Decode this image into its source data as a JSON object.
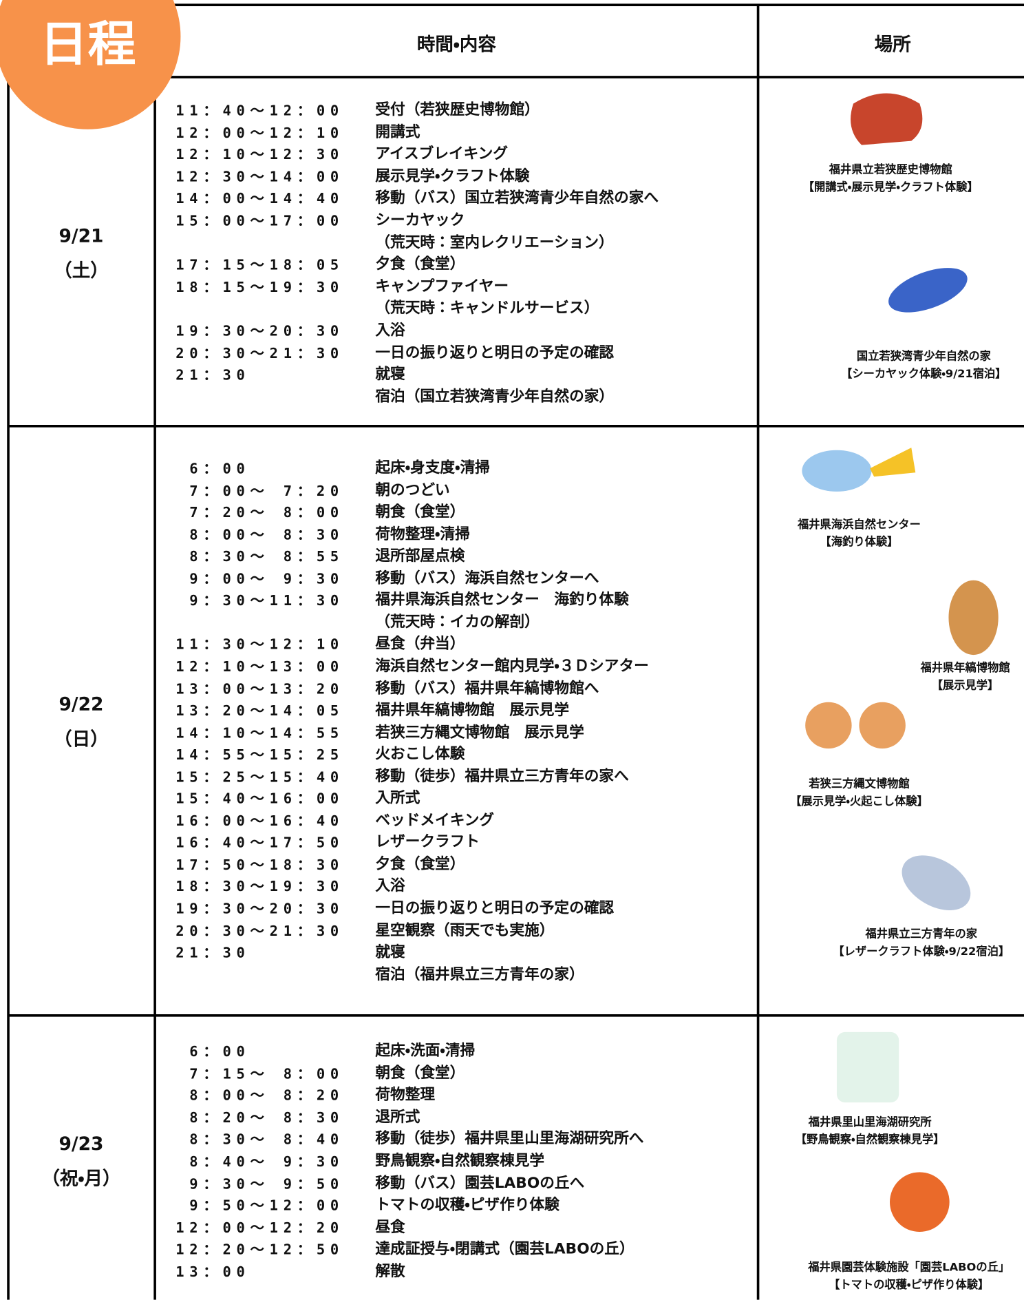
{
  "header": {
    "badge": "日程",
    "columns": [
      "時間・内容",
      "場所"
    ]
  },
  "days": [
    {
      "date": "9/21",
      "weekday": "（土）",
      "items": [
        {
          "time": "11：40〜12：00",
          "text": "受付（若狭歴史博物館）"
        },
        {
          "time": "12：00〜12：10",
          "text": "開講式"
        },
        {
          "time": "12：10〜12：30",
          "text": "アイスブレイキング"
        },
        {
          "time": "12：30〜14：00",
          "text": "展示見学・クラフト体験"
        },
        {
          "time": "14：00〜14：40",
          "text": "移動（バス）国立若狭湾青少年自然の家へ"
        },
        {
          "time": "15：00〜17：00",
          "text": "シーカヤック"
        },
        {
          "text": "（荒天時：室内レクリエーション）"
        },
        {
          "time": "17：15〜18：05",
          "text": "夕食（食堂）"
        },
        {
          "time": "18：15〜19：30",
          "text": "キャンプファイヤー"
        },
        {
          "text": "（荒天時：キャンドルサービス）"
        },
        {
          "time": "19：30〜20：30",
          "text": "入浴"
        },
        {
          "time": "20：30〜21：30",
          "text": "一日の振り返りと明日の予定の確認"
        },
        {
          "time": "21：30",
          "text": "就寝"
        },
        {
          "text": "宿泊（国立若狭湾青少年自然の家）"
        }
      ],
      "places": [
        {
          "name": "福井県立若狭歴史博物館",
          "detail": "【開講式・展示見学・クラフト体験】"
        },
        {
          "name": "国立若狭湾青少年自然の家",
          "detail": "【シーカヤック体験・9/21宿泊】"
        }
      ]
    },
    {
      "date": "9/22",
      "weekday": "（日）",
      "items": [
        {
          "time": " 6：00",
          "text": "起床・身支度・清掃"
        },
        {
          "time": " 7：00〜 7：20",
          "text": "朝のつどい"
        },
        {
          "time": " 7：20〜 8：00",
          "text": "朝食（食堂）"
        },
        {
          "time": " 8：00〜 8：30",
          "text": "荷物整理・清掃"
        },
        {
          "time": " 8：30〜 8：55",
          "text": "退所部屋点検"
        },
        {
          "time": " 9：00〜 9：30",
          "text": "移動（バス）海浜自然センターへ"
        },
        {
          "time": " 9：30〜11：30",
          "text": "福井県海浜自然センター　海釣り体験"
        },
        {
          "text": "（荒天時：イカの解剖）"
        },
        {
          "time": "11：30〜12：10",
          "text": "昼食（弁当）"
        },
        {
          "time": "12：10〜13：00",
          "text": "海浜自然センター館内見学・３Ｄシアター"
        },
        {
          "time": "13：00〜13：20",
          "text": "移動（バス）福井県年縞博物館へ"
        },
        {
          "time": "13：20〜14：05",
          "text": "福井県年縞博物館　展示見学"
        },
        {
          "time": "14：10〜14：55",
          "text": "若狭三方縄文博物館　展示見学"
        },
        {
          "time": "14：55〜15：25",
          "text": "火おこし体験"
        },
        {
          "time": "15：25〜15：40",
          "text": "移動（徒歩）福井県立三方青年の家へ"
        },
        {
          "time": "15：40〜16：00",
          "text": "入所式"
        },
        {
          "time": "16：00〜16：40",
          "text": "ベッドメイキング"
        },
        {
          "time": "16：40〜17：50",
          "text": "レザークラフト"
        },
        {
          "time": "17：50〜18：30",
          "text": "夕食（食堂）"
        },
        {
          "time": "18：30〜19：30",
          "text": "入浴"
        },
        {
          "time": "19：30〜20：30",
          "text": "一日の振り返りと明日の予定の確認"
        },
        {
          "time": "20：30〜21：30",
          "text": "星空観察（雨天でも実施）"
        },
        {
          "time": "21：30",
          "text": "就寝"
        },
        {
          "text": "宿泊（福井県立三方青年の家）"
        }
      ],
      "places": [
        {
          "name": "福井県海浜自然センター",
          "detail": "【海釣り体験】"
        },
        {
          "name": "福井県年縞博物館",
          "detail": "【展示見学】"
        },
        {
          "name": "若狭三方縄文博物館",
          "detail": "【展示見学・火起こし体験】"
        },
        {
          "name": "福井県立三方青年の家",
          "detail": "【レザークラフト体験・9/22宿泊】"
        }
      ]
    },
    {
      "date": "9/23",
      "weekday": "（祝・月）",
      "items": [
        {
          "time": " 6：00",
          "text": "起床・洗面・清掃"
        },
        {
          "time": " 7：15〜 8：00",
          "text": "朝食（食堂）"
        },
        {
          "time": " 8：00〜 8：20",
          "text": "荷物整理"
        },
        {
          "time": " 8：20〜 8：30",
          "text": "退所式"
        },
        {
          "time": " 8：30〜 8：40",
          "text": "移動（徒歩）福井県里山里海湖研究所へ"
        },
        {
          "time": " 8：40〜 9：30",
          "text": "野鳥観察・自然観察棟見学"
        },
        {
          "time": " 9：30〜 9：50",
          "text": "移動（バス）園芸LABOの丘へ"
        },
        {
          "time": " 9：50〜12：00",
          "text": "トマトの収穫・ピザ作り体験"
        },
        {
          "time": "12：00〜12：20",
          "text": "昼食"
        },
        {
          "time": "12：20〜12：50",
          "text": "達成証授与・閉講式（園芸LABOの丘）"
        },
        {
          "time": "13：00",
          "text": "解散"
        }
      ],
      "places": [
        {
          "name": "福井県里山里海湖研究所",
          "detail": "【野鳥観察・自然観察棟見学】"
        },
        {
          "name": "福井県園芸体験施設「園芸LABOの丘」",
          "detail": "【トマトの収穫・ピザ作り体験】"
        }
      ]
    }
  ]
}
